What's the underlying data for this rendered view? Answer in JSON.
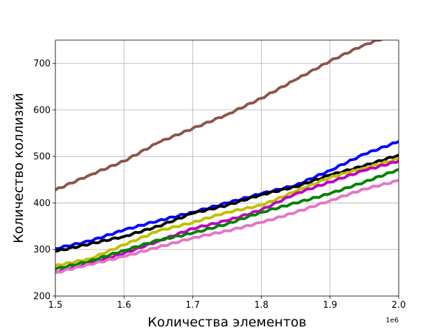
{
  "chart_data": {
    "type": "line",
    "title": "",
    "xlabel": "Количества элементов",
    "ylabel": "Количество коллизий",
    "x_offset_label": "1e6",
    "xlim": [
      1.5,
      2.0
    ],
    "ylim": [
      200,
      750
    ],
    "x_ticks": [
      1.5,
      1.6,
      1.7,
      1.8,
      1.9,
      2.0
    ],
    "x_tick_labels": [
      "1.5",
      "1.6",
      "1.7",
      "1.8",
      "1.9",
      "2.0"
    ],
    "y_ticks": [
      200,
      300,
      400,
      500,
      600,
      700
    ],
    "y_tick_labels": [
      "200",
      "300",
      "400",
      "500",
      "600",
      "700"
    ],
    "grid": true,
    "legend": "none",
    "x": [
      1.5,
      1.55,
      1.6,
      1.65,
      1.7,
      1.75,
      1.8,
      1.85,
      1.9,
      1.95,
      2.0
    ],
    "series": [
      {
        "color": "#8c564b",
        "values": [
          428,
          460,
          490,
          530,
          560,
          590,
          625,
          665,
          705,
          740,
          765
        ]
      },
      {
        "color": "#0000ff",
        "values": [
          302,
          318,
          342,
          362,
          380,
          400,
          420,
          438,
          470,
          505,
          532
        ]
      },
      {
        "color": "#000000",
        "values": [
          296,
          312,
          328,
          350,
          378,
          395,
          418,
          435,
          460,
          480,
          503
        ]
      },
      {
        "color": "#bfbf00",
        "values": [
          265,
          280,
          310,
          340,
          358,
          380,
          395,
          425,
          455,
          475,
          495
        ]
      },
      {
        "color": "#bf00bf",
        "values": [
          252,
          270,
          292,
          318,
          345,
          362,
          385,
          420,
          445,
          470,
          490
        ]
      },
      {
        "color": "#008000",
        "values": [
          258,
          275,
          298,
          320,
          335,
          355,
          380,
          400,
          420,
          445,
          472
        ]
      },
      {
        "color": "#e377c2",
        "values": [
          250,
          268,
          285,
          305,
          325,
          340,
          358,
          380,
          405,
          430,
          448
        ]
      }
    ]
  }
}
